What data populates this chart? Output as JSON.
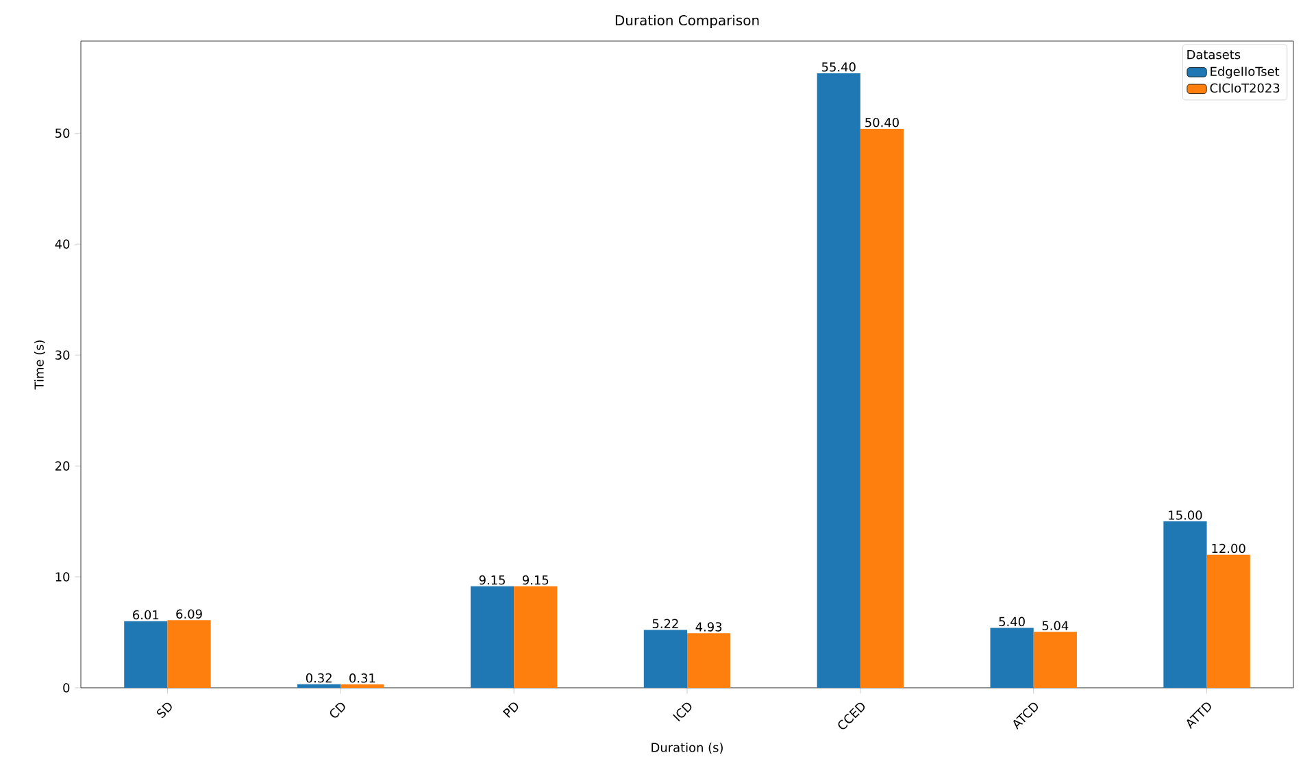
{
  "chart_data": {
    "type": "bar",
    "title": "Duration Comparison",
    "xlabel": "Duration (s)",
    "ylabel": "Time (s)",
    "legend_title": "Datasets",
    "legend": "top right",
    "categories": [
      "SD",
      "CD",
      "PD",
      "ICD",
      "CCED",
      "ATCD",
      "ATTD"
    ],
    "series": [
      {
        "name": "EdgeIIoTset",
        "color": "#1f77b4",
        "values": [
          6.01,
          0.32,
          9.15,
          5.22,
          55.4,
          5.4,
          15.0
        ],
        "value_labels": [
          "6.01",
          "0.32",
          "9.15",
          "5.22",
          "55.40",
          "5.40",
          "15.00"
        ]
      },
      {
        "name": "CICIoT2023",
        "color": "#ff7f0e",
        "values": [
          6.09,
          0.31,
          9.15,
          4.93,
          50.4,
          5.04,
          12.0
        ],
        "value_labels": [
          "6.09",
          "0.31",
          "9.15",
          "4.93",
          "50.40",
          "5.04",
          "12.00"
        ]
      }
    ],
    "ylim": [
      0,
      58.3
    ],
    "yticks": [
      0,
      10,
      20,
      30,
      40,
      50
    ]
  }
}
